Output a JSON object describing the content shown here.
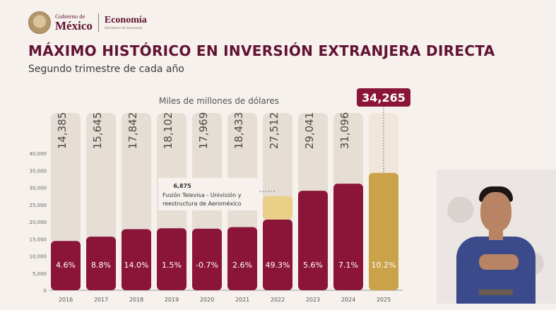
{
  "header": {
    "gob_small": "Gobierno de",
    "gob_big": "México",
    "eco_big": "Economía",
    "eco_small": "Secretaría de Economía"
  },
  "chart_data": {
    "type": "bar",
    "title": "MÁXIMO HISTÓRICO EN INVERSIÓN EXTRANJERA DIRECTA",
    "subtitle": "Segundo trimestre de cada año",
    "unit_label": "Miles de millones de dólares",
    "categories": [
      "2016",
      "2017",
      "2018",
      "2019",
      "2020",
      "2021",
      "2022",
      "2023",
      "2024",
      "2025"
    ],
    "totals": [
      14385,
      15645,
      17842,
      18102,
      17969,
      18433,
      27512,
      29041,
      31096,
      34265
    ],
    "total_labels": [
      "14,385",
      "15,645",
      "17,842",
      "18,102",
      "17,969",
      "18,433",
      "27,512",
      "29,041",
      "31,096",
      "34,265"
    ],
    "growth_labels": [
      "4.6%",
      "8.8%",
      "14.0%",
      "1.5%",
      "-0.7%",
      "2.6%",
      "49.3%",
      "5.6%",
      "7.1%",
      "10.2%"
    ],
    "series": [
      {
        "name": "",
        "values": [
          14385,
          15645,
          17842,
          18102,
          17969,
          18433,
          20637,
          29041,
          31096,
          34265
        ],
        "color": "#8b1538"
      },
      {
        "name": "",
        "values": [
          0,
          0,
          0,
          0,
          0,
          0,
          6875,
          0,
          0,
          0
        ],
        "color": "#e9cf86"
      }
    ],
    "highlight_index": 9,
    "highlight_color": "#c9a24a",
    "annotation": {
      "value_label": "6,875",
      "text": "Fusión Televisa - Univisión y reestructura de Aeroméxico"
    },
    "yticks": [
      0,
      5000,
      10000,
      15000,
      20000,
      25000,
      30000,
      35000,
      40000
    ],
    "ytick_labels": [
      "0",
      "5,000",
      "10,000",
      "15,000",
      "20,000",
      "25,000",
      "30,000",
      "35,000",
      "40,000"
    ],
    "ylim": [
      0,
      40000
    ],
    "grid": false
  }
}
